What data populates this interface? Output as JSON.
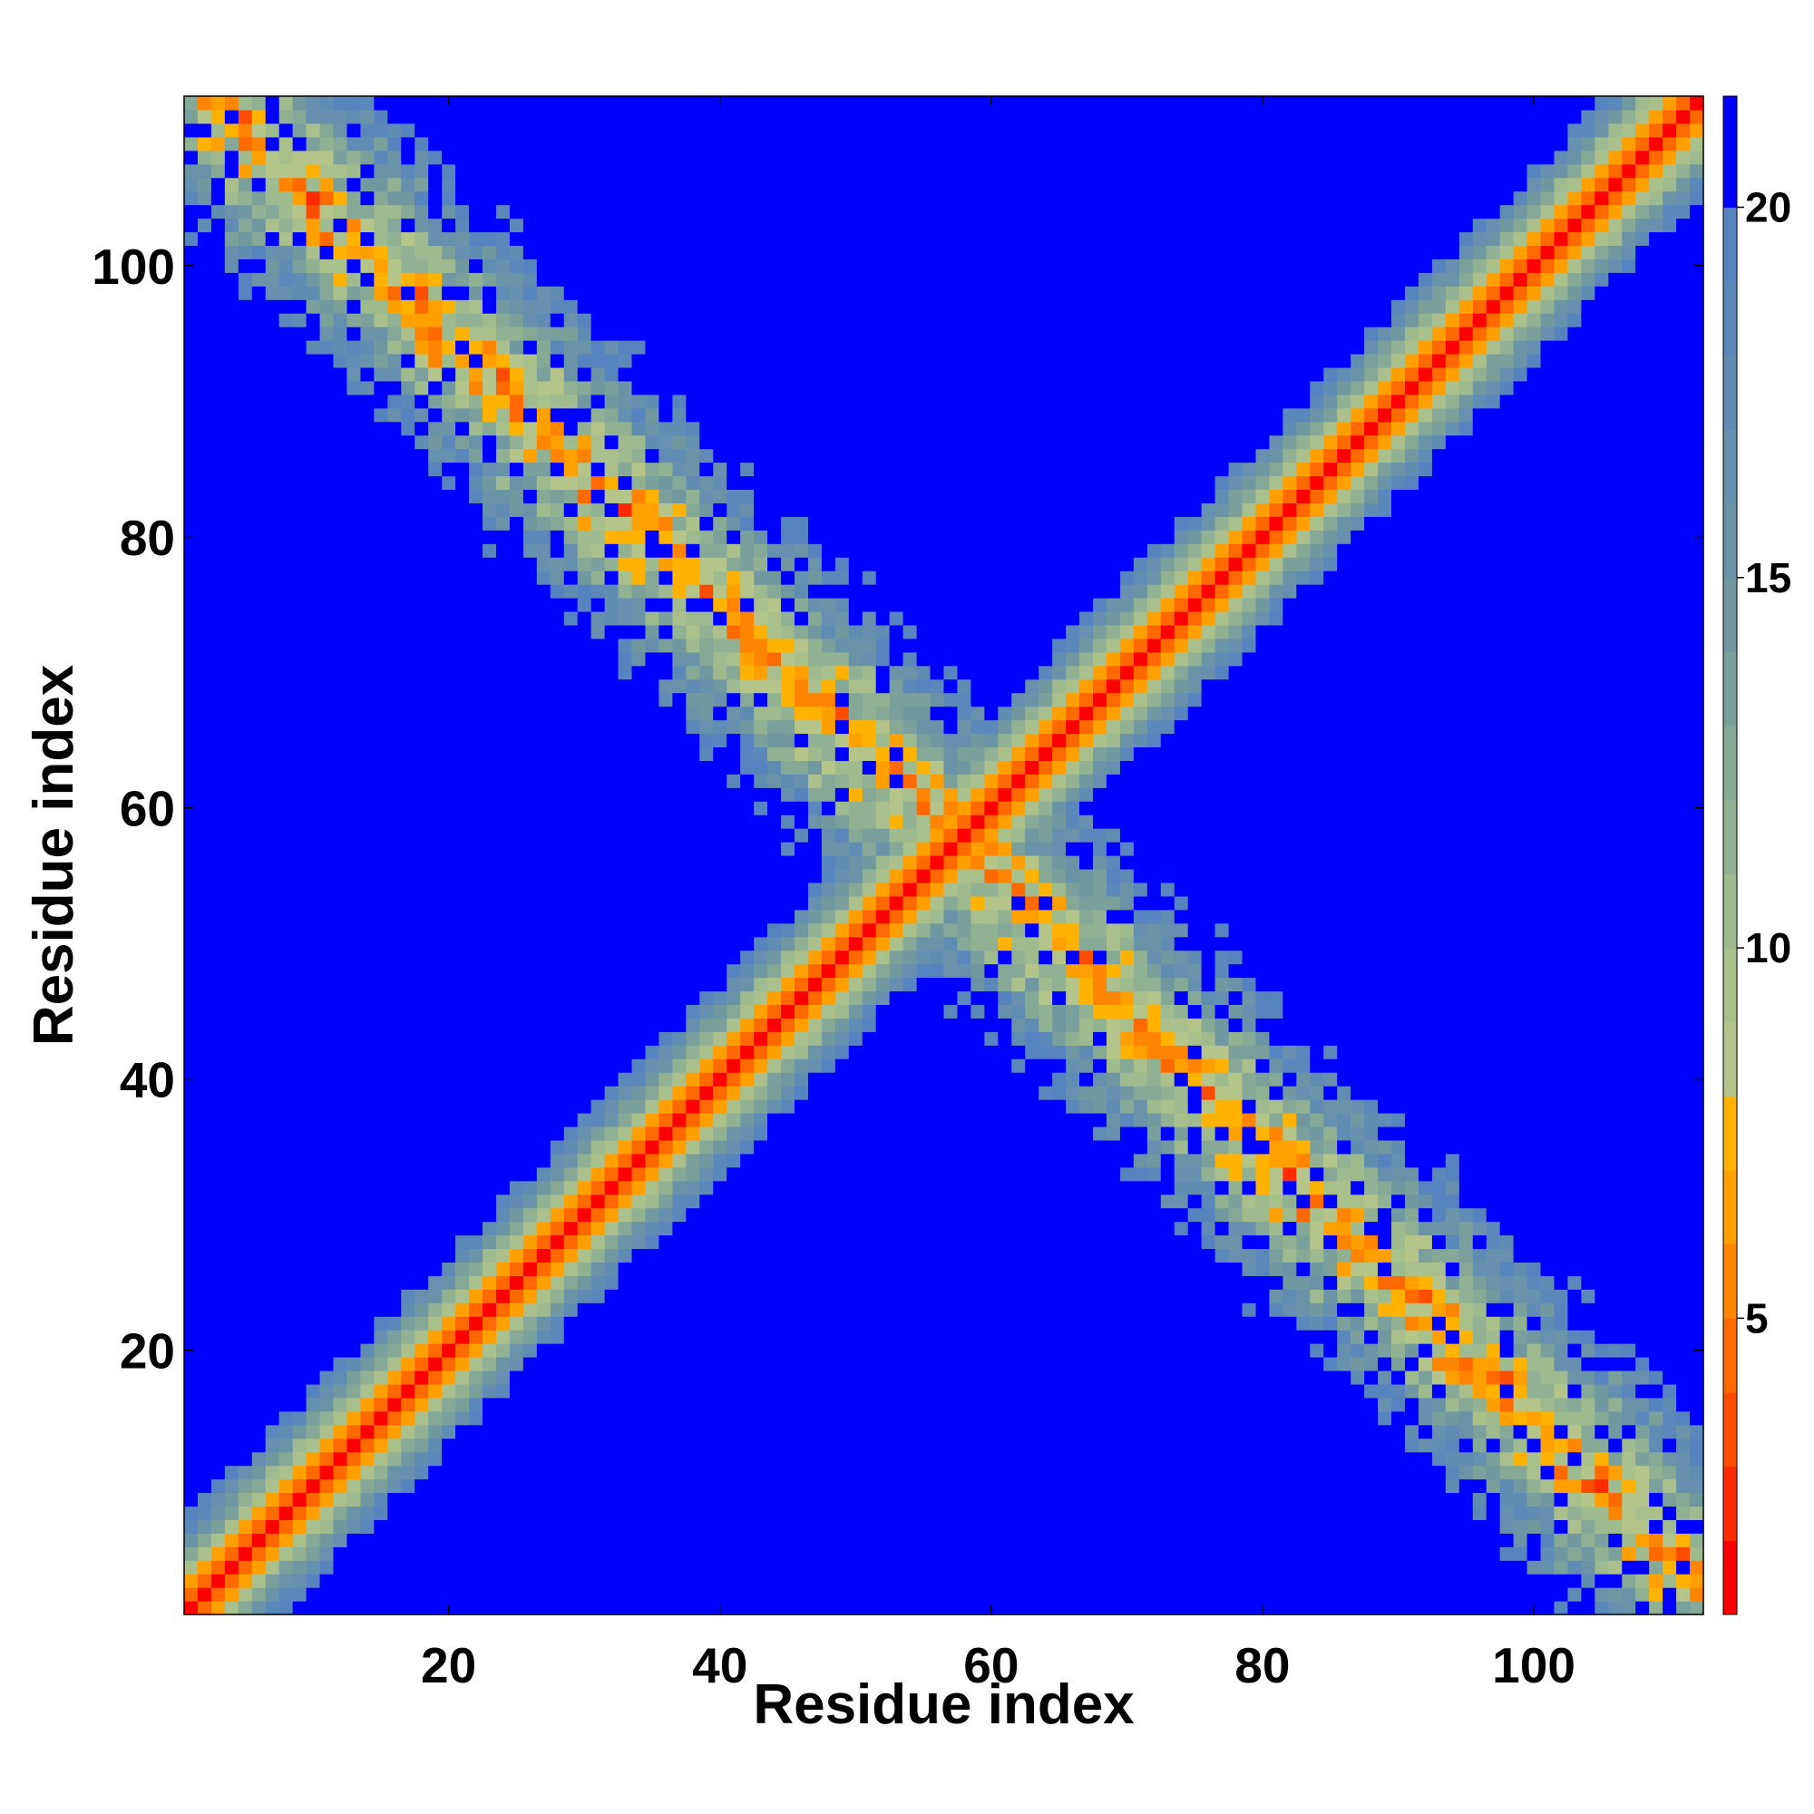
{
  "chart_data": {
    "type": "heatmap",
    "title": "",
    "xlabel": "Residue index",
    "ylabel": "Residue index",
    "xlim": [
      1,
      112
    ],
    "ylim": [
      1,
      112
    ],
    "n_residues": 112,
    "x_ticks": [
      20,
      40,
      60,
      80,
      100
    ],
    "y_ticks": [
      20,
      40,
      60,
      80,
      100
    ],
    "colorbar": {
      "ticks": [
        5,
        10,
        15,
        20
      ],
      "range": [
        1,
        21.5
      ],
      "levels": [
        {
          "max": 2,
          "color": "#ff0000"
        },
        {
          "max": 3,
          "color": "#ff2a00"
        },
        {
          "max": 4,
          "color": "#ff4d00"
        },
        {
          "max": 5,
          "color": "#ff6a00"
        },
        {
          "max": 6,
          "color": "#ff8500"
        },
        {
          "max": 7,
          "color": "#ffa000"
        },
        {
          "max": 8,
          "color": "#ffb300"
        },
        {
          "max": 9,
          "color": "#b5c58a"
        },
        {
          "max": 10,
          "color": "#a9c08c"
        },
        {
          "max": 11,
          "color": "#9dbb8e"
        },
        {
          "max": 12,
          "color": "#91b292"
        },
        {
          "max": 13,
          "color": "#85a897"
        },
        {
          "max": 14,
          "color": "#7ba09c"
        },
        {
          "max": 15,
          "color": "#7198a1"
        },
        {
          "max": 16,
          "color": "#6b93a8"
        },
        {
          "max": 17,
          "color": "#6690ae"
        },
        {
          "max": 18,
          "color": "#608cb4"
        },
        {
          "max": 19,
          "color": "#5a88ba"
        },
        {
          "max": 20,
          "color": "#5684bf"
        },
        {
          "max": 21.5,
          "color": "#0000ff"
        }
      ],
      "out_of_range_color": "#0000ff"
    },
    "structure": {
      "description_values": "symmetric inter-residue distance map; main diagonal band plus an anti-diagonal band crossing near residue 50-75",
      "diagonal_min": 1.5,
      "diagonal_width": 5.5,
      "antidiagonal_sum": 115,
      "antidiagonal_min": 6,
      "antidiagonal_width": 11,
      "threshold": 21
    }
  }
}
